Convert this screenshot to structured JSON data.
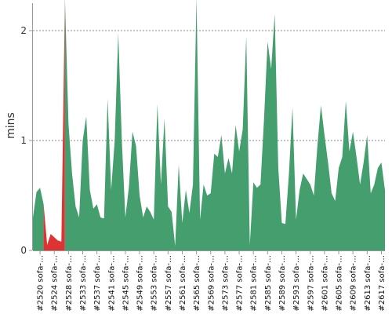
{
  "chart_data": {
    "type": "area",
    "title": "",
    "xlabel": "",
    "ylabel": "mins",
    "ylim": [
      0,
      2.25
    ],
    "yticks": [
      "0",
      "1",
      "2"
    ],
    "yticks_values": [
      0,
      1,
      2
    ],
    "grid": true,
    "colors": {
      "pass": "#449e6e",
      "fail": "#dd3333",
      "grid": "#888888",
      "axis": "#999999"
    },
    "x_labels": [
      "#2520 sofa-…",
      "#2524 sofa-…",
      "#2528 sofa-…",
      "#2533 sofa-…",
      "#2537 sofa-…",
      "#2541 sofa-…",
      "#2545 sofa-…",
      "#2549 sofa-…",
      "#2553 sofa-…",
      "#2557 sofa-…",
      "#2561 sofa-…",
      "#2565 sofa-…",
      "#2569 sofa-…",
      "#2573 sofa-…",
      "#2577 sofa-…",
      "#2581 sofa-…",
      "#2585 sofa-…",
      "#2589 sofa-…",
      "#2593 sofa-…",
      "#2597 sofa-…",
      "#2601 sofa-…",
      "#2605 sofa-…",
      "#2609 sofa-…",
      "#2613 sofa-…",
      "#2617 sofa-…"
    ],
    "x_labels_first_index": 2,
    "x_labels_step": 4,
    "values": [
      0.3,
      0.53,
      0.57,
      0.42,
      0.05,
      0.15,
      0.12,
      0.09,
      0.08,
      2.3,
      1.15,
      0.7,
      0.4,
      0.3,
      1.0,
      1.22,
      0.55,
      0.38,
      0.42,
      0.3,
      0.29,
      1.38,
      0.55,
      1.0,
      1.98,
      1.0,
      0.3,
      0.58,
      1.08,
      0.95,
      0.5,
      0.3,
      0.4,
      0.35,
      0.28,
      1.33,
      0.6,
      1.2,
      0.4,
      0.35,
      0.04,
      0.78,
      0.25,
      0.55,
      0.34,
      0.6,
      2.3,
      0.28,
      0.6,
      0.5,
      0.52,
      0.88,
      0.85,
      1.05,
      0.7,
      0.84,
      0.7,
      1.14,
      0.9,
      1.1,
      1.95,
      0.05,
      0.62,
      0.57,
      0.6,
      1.2,
      1.9,
      1.65,
      2.15,
      0.75,
      0.25,
      0.24,
      0.7,
      1.3,
      0.28,
      0.55,
      0.7,
      0.65,
      0.6,
      0.5,
      0.95,
      1.32,
      1.05,
      0.8,
      0.52,
      0.45,
      0.75,
      0.85,
      1.36,
      0.9,
      1.08,
      0.85,
      0.6,
      0.8,
      1.05,
      0.52,
      0.6,
      0.75,
      0.8,
      0.55
    ],
    "status": [
      "pass",
      "pass",
      "pass",
      "fail",
      "fail",
      "fail",
      "fail",
      "fail",
      "fail",
      "pass",
      "pass",
      "pass",
      "pass",
      "pass",
      "pass",
      "pass",
      "pass",
      "pass",
      "pass",
      "pass",
      "pass",
      "pass",
      "pass",
      "pass",
      "pass",
      "pass",
      "pass",
      "pass",
      "pass",
      "pass",
      "pass",
      "pass",
      "pass",
      "pass",
      "pass",
      "pass",
      "pass",
      "pass",
      "pass",
      "pass",
      "pass",
      "pass",
      "pass",
      "pass",
      "pass",
      "pass",
      "pass",
      "pass",
      "pass",
      "pass",
      "pass",
      "pass",
      "pass",
      "pass",
      "pass",
      "pass",
      "pass",
      "pass",
      "pass",
      "pass",
      "pass",
      "pass",
      "pass",
      "pass",
      "pass",
      "pass",
      "pass",
      "pass",
      "pass",
      "pass",
      "pass",
      "pass",
      "pass",
      "pass",
      "pass",
      "pass",
      "pass",
      "pass",
      "pass",
      "pass",
      "pass",
      "pass",
      "pass",
      "pass",
      "pass",
      "pass",
      "pass",
      "pass",
      "pass",
      "pass",
      "pass",
      "pass",
      "pass",
      "pass",
      "pass",
      "pass",
      "pass",
      "pass",
      "pass",
      "pass"
    ]
  }
}
